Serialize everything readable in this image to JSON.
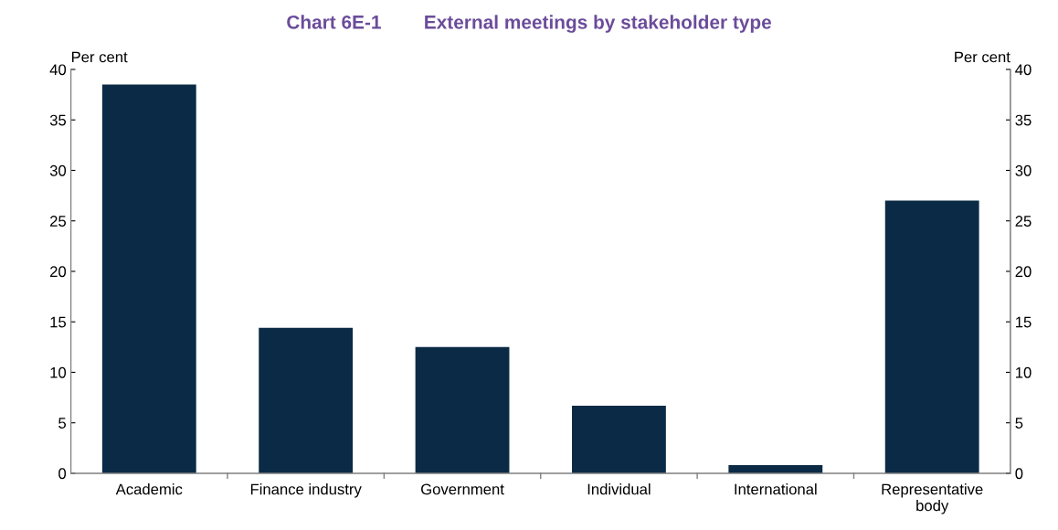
{
  "chart_data": {
    "type": "bar",
    "title": "Chart 6E-1        External meetings by stakeholder type",
    "categories": [
      "Academic",
      "Finance industry",
      "Government",
      "Individual",
      "International",
      "Representative\nbody"
    ],
    "values": [
      38.5,
      14.4,
      12.5,
      6.7,
      0.8,
      27.0
    ],
    "color": "#0b2a45",
    "ylabel": "Per cent",
    "y2label": "Per cent",
    "ylim": [
      0,
      40
    ],
    "yticks": [
      0,
      5,
      10,
      15,
      20,
      25,
      30,
      35,
      40
    ],
    "y2lim": [
      0,
      40
    ],
    "y2ticks": [
      0,
      5,
      10,
      15,
      20,
      25,
      30,
      35,
      40
    ],
    "grid": false
  }
}
